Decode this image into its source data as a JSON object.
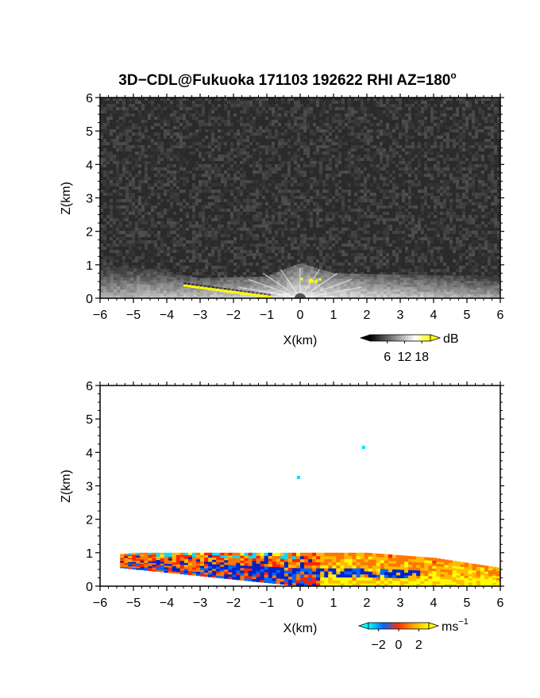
{
  "chart_data": [
    {
      "type": "heatmap",
      "panel": "reflectivity",
      "title_main": "3D−CDL@Fukuoka 171103 192622 RHI AZ=180",
      "title_sup": "o",
      "xlabel": "X(km)",
      "ylabel": "Z(km)",
      "xlim": [
        -6,
        6
      ],
      "ylim": [
        0,
        6
      ],
      "xticks": [
        "−6",
        "−5",
        "−4",
        "−3",
        "−2",
        "−1",
        "0",
        "1",
        "2",
        "3",
        "4",
        "5",
        "6"
      ],
      "yticks": [
        "0",
        "1",
        "2",
        "3",
        "4",
        "5",
        "6"
      ],
      "colorbar": {
        "unit": "dB",
        "ticks": [
          "6",
          "12",
          "18"
        ],
        "tick_values": [
          6,
          12,
          18
        ],
        "range": [
          0,
          21
        ],
        "colors": [
          "#000000",
          "#555555",
          "#aaaaaa",
          "#ffffff",
          "#ffff00"
        ]
      },
      "features": {
        "background": "noise",
        "echo_layer_top_km_at_x": [
          [
            -6,
            0.95
          ],
          [
            -5,
            0.9
          ],
          [
            -3,
            0.6
          ],
          [
            -1,
            0.65
          ],
          [
            0,
            1.05
          ],
          [
            1,
            0.75
          ],
          [
            3,
            0.7
          ],
          [
            6,
            0.65
          ]
        ],
        "ground_clutter_yellow_x_km": [
          -3.5,
          -0.9
        ],
        "center_dome_km": [
          0,
          0.15
        ]
      }
    },
    {
      "type": "heatmap",
      "panel": "velocity",
      "xlabel": "X(km)",
      "ylabel": "Z(km)",
      "xlim": [
        -6,
        6
      ],
      "ylim": [
        0,
        6
      ],
      "xticks": [
        "−6",
        "−5",
        "−4",
        "−3",
        "−2",
        "−1",
        "0",
        "1",
        "2",
        "3",
        "4",
        "5",
        "6"
      ],
      "yticks": [
        "0",
        "1",
        "2",
        "3",
        "4",
        "5",
        "6"
      ],
      "colorbar": {
        "unit": "ms",
        "unit_sup": "−1",
        "ticks": [
          "−2",
          "0",
          "2"
        ],
        "tick_values": [
          -2,
          0,
          2
        ],
        "range": [
          -3,
          3
        ],
        "colors": [
          "#00ffff",
          "#0066ff",
          "#ff3300",
          "#ffaa00",
          "#ffff00"
        ]
      },
      "features": {
        "echo_x_range_km": [
          -5.4,
          6
        ],
        "echo_top_km_at_x": [
          [
            -5.4,
            0.95
          ],
          [
            -5,
            1.0
          ],
          [
            -3,
            1.0
          ],
          [
            -1,
            1.0
          ],
          [
            0,
            1.0
          ],
          [
            2,
            1.0
          ],
          [
            4,
            0.85
          ],
          [
            6,
            0.55
          ]
        ],
        "isolated_pixels_km": [
          [
            1.9,
            4.15
          ],
          [
            -0.05,
            3.25
          ]
        ]
      }
    }
  ]
}
